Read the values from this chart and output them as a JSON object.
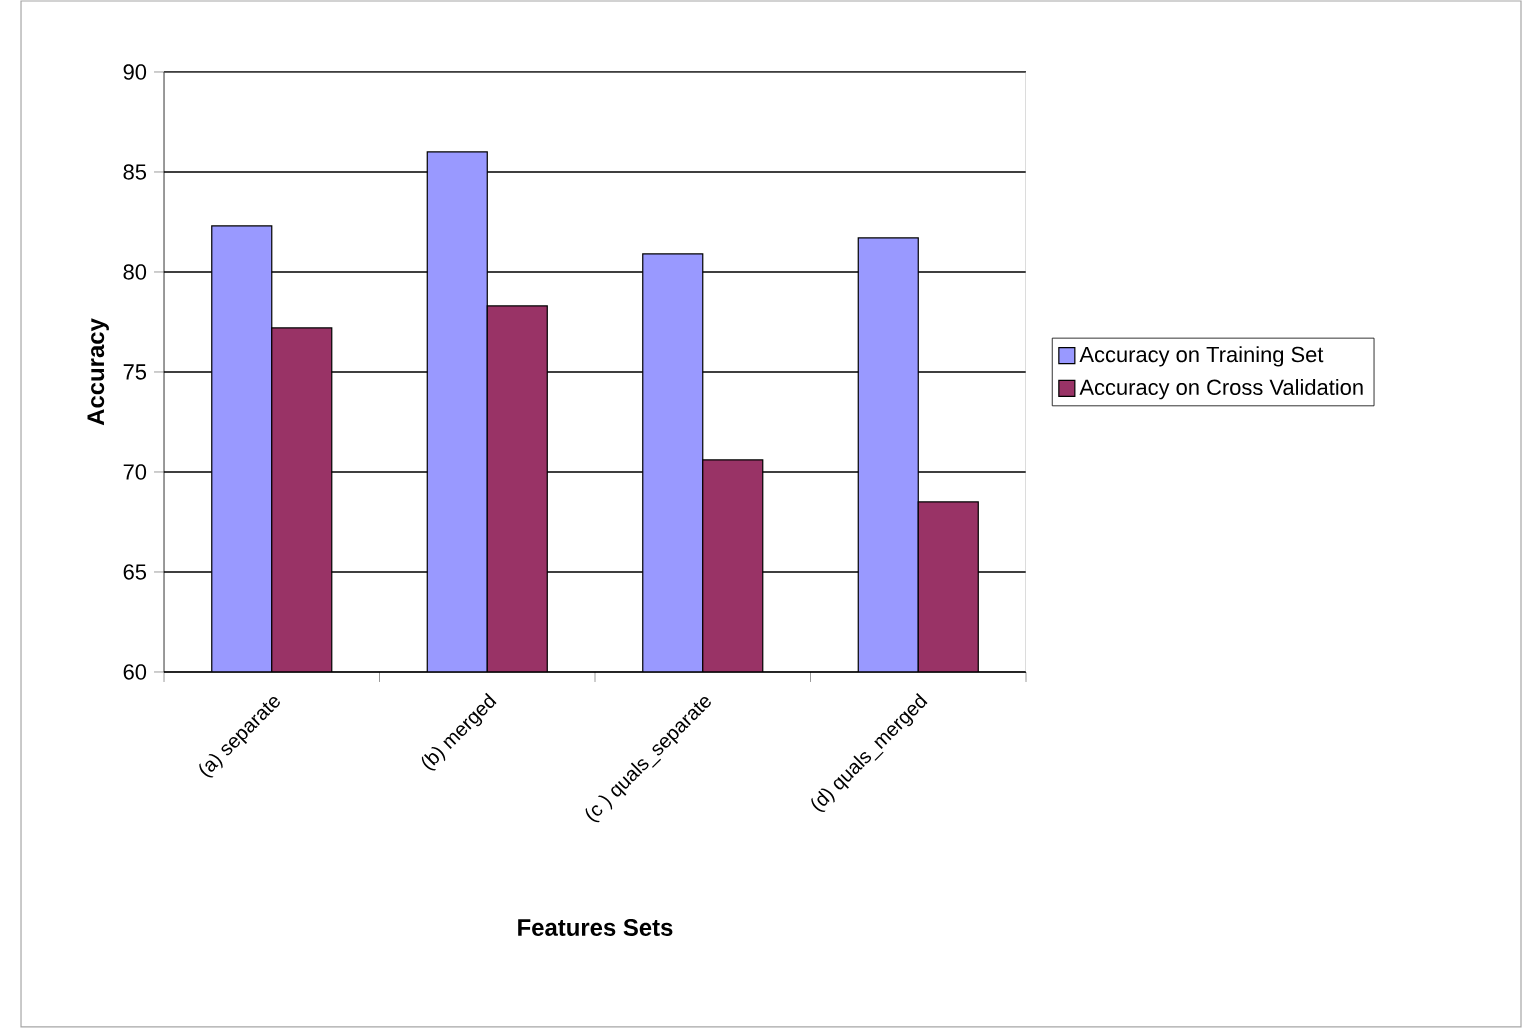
{
  "chart_data": {
    "type": "bar",
    "xlabel": "Features Sets",
    "ylabel": "Accuracy",
    "categories": [
      "(a) separate",
      "(b) merged",
      "(c ) quals_separate",
      "(d) quals_merged"
    ],
    "series": [
      {
        "name": "Accuracy on Training Set",
        "color": "#9999ff",
        "values": [
          82.3,
          86.0,
          80.9,
          81.7
        ]
      },
      {
        "name": "Accuracy on Cross Validation",
        "color": "#993366",
        "values": [
          77.2,
          78.3,
          70.6,
          68.5
        ]
      }
    ],
    "ylim": [
      60,
      90
    ],
    "yticks": [
      60,
      65,
      70,
      75,
      80,
      85,
      90
    ],
    "grid": "y",
    "legend": "right"
  }
}
